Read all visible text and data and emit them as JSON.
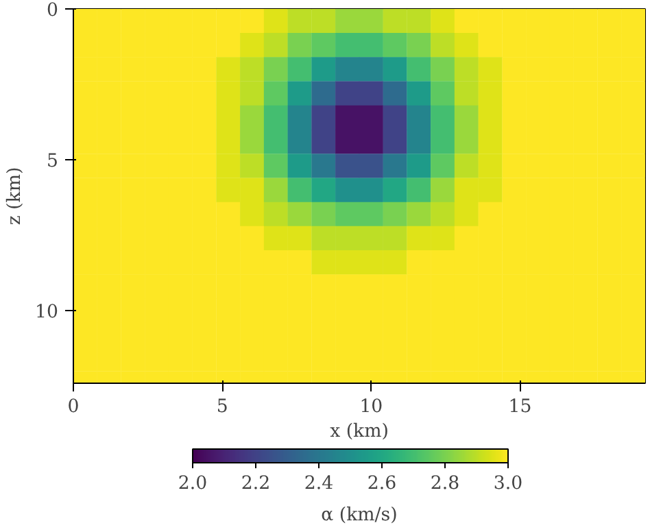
{
  "chart_data": {
    "type": "heatmap",
    "xlabel": "x (km)",
    "ylabel": "z (km)",
    "clabel": "α (km/s)",
    "xlim": [
      0,
      19.2
    ],
    "ylim": [
      12.4,
      0
    ],
    "xticks": [
      0,
      5,
      10,
      15
    ],
    "yticks": [
      0,
      5,
      10
    ],
    "clim": [
      2,
      3
    ],
    "cticks": [
      {
        "value": 2,
        "label": "2.0"
      },
      {
        "value": 2.2,
        "label": "2.2"
      },
      {
        "value": 2.4,
        "label": "2.4"
      },
      {
        "value": 2.6,
        "label": "2.6"
      },
      {
        "value": 2.8,
        "label": "2.8"
      },
      {
        "value": 3,
        "label": "3.0"
      }
    ],
    "x": [
      0.4,
      1.2,
      2.0,
      2.8,
      3.6,
      4.4,
      5.2,
      6.0,
      6.8,
      7.6,
      8.4,
      9.2,
      10.0,
      10.8,
      11.6,
      12.4,
      13.2,
      14.0,
      14.8,
      15.6,
      16.4,
      17.2,
      18.0,
      18.8
    ],
    "y": [
      0.4,
      1.2,
      2.0,
      2.8,
      3.6,
      4.4,
      5.2,
      6.0,
      6.8,
      7.6,
      8.4,
      9.2,
      10.0,
      10.8,
      11.6,
      12.4
    ],
    "cells": [
      [
        3,
        3,
        3,
        3,
        3,
        3,
        3,
        3,
        2.95,
        2.9,
        2.9,
        2.85,
        2.85,
        2.9,
        2.9,
        2.95,
        3,
        3,
        3,
        3,
        3,
        3,
        3,
        3
      ],
      [
        3,
        3,
        3,
        3,
        3,
        3,
        3,
        2.95,
        2.9,
        2.8,
        2.75,
        2.7,
        2.7,
        2.75,
        2.8,
        2.9,
        2.95,
        3,
        3,
        3,
        3,
        3,
        3,
        3
      ],
      [
        3,
        3,
        3,
        3,
        3,
        3,
        2.95,
        2.9,
        2.8,
        2.7,
        2.55,
        2.45,
        2.45,
        2.55,
        2.7,
        2.8,
        2.9,
        2.95,
        3,
        3,
        3,
        3,
        3,
        3
      ],
      [
        3,
        3,
        3,
        3,
        3,
        3,
        2.95,
        2.9,
        2.75,
        2.55,
        2.35,
        2.2,
        2.2,
        2.35,
        2.55,
        2.75,
        2.9,
        2.95,
        3,
        3,
        3,
        3,
        3,
        3
      ],
      [
        3,
        3,
        3,
        3,
        3,
        3,
        2.95,
        2.85,
        2.7,
        2.45,
        2.2,
        2.05,
        2.05,
        2.2,
        2.45,
        2.7,
        2.85,
        2.95,
        3,
        3,
        3,
        3,
        3,
        3
      ],
      [
        3,
        3,
        3,
        3,
        3,
        3,
        2.95,
        2.85,
        2.7,
        2.45,
        2.2,
        2.05,
        2.05,
        2.2,
        2.45,
        2.7,
        2.85,
        2.95,
        3,
        3,
        3,
        3,
        3,
        3
      ],
      [
        3,
        3,
        3,
        3,
        3,
        3,
        2.95,
        2.9,
        2.75,
        2.55,
        2.4,
        2.25,
        2.25,
        2.4,
        2.55,
        2.75,
        2.9,
        2.95,
        3,
        3,
        3,
        3,
        3,
        3
      ],
      [
        3,
        3,
        3,
        3,
        3,
        3,
        2.95,
        2.95,
        2.85,
        2.7,
        2.6,
        2.5,
        2.5,
        2.6,
        2.7,
        2.85,
        2.95,
        2.95,
        3,
        3,
        3,
        3,
        3,
        3
      ],
      [
        3,
        3,
        3,
        3,
        3,
        3,
        3,
        2.95,
        2.9,
        2.85,
        2.8,
        2.75,
        2.75,
        2.8,
        2.85,
        2.9,
        2.95,
        3,
        3,
        3,
        3,
        3,
        3,
        3
      ],
      [
        3,
        3,
        3,
        3,
        3,
        3,
        3,
        3,
        2.95,
        2.95,
        2.9,
        2.9,
        2.9,
        2.9,
        2.95,
        2.95,
        3,
        3,
        3,
        3,
        3,
        3,
        3,
        3
      ],
      [
        3,
        3,
        3,
        3,
        3,
        3,
        3,
        3,
        3,
        3,
        2.95,
        2.95,
        2.95,
        2.95,
        3,
        3,
        3,
        3,
        3,
        3,
        3,
        3,
        3,
        3
      ],
      [
        3,
        3,
        3,
        3,
        3,
        3,
        3,
        3,
        3,
        3,
        3,
        3,
        3,
        3,
        3,
        3,
        3,
        3,
        3,
        3,
        3,
        3,
        3,
        3
      ],
      [
        3,
        3,
        3,
        3,
        3,
        3,
        3,
        3,
        3,
        3,
        3,
        3,
        3,
        3,
        3,
        3,
        3,
        3,
        3,
        3,
        3,
        3,
        3,
        3
      ],
      [
        3,
        3,
        3,
        3,
        3,
        3,
        3,
        3,
        3,
        3,
        3,
        3,
        3,
        3,
        3,
        3,
        3,
        3,
        3,
        3,
        3,
        3,
        3,
        3
      ],
      [
        3,
        3,
        3,
        3,
        3,
        3,
        3,
        3,
        3,
        3,
        3,
        3,
        3,
        3,
        3,
        3,
        3,
        3,
        3,
        3,
        3,
        3,
        3,
        3
      ],
      [
        3,
        3,
        3,
        3,
        3,
        3,
        3,
        3,
        3,
        3,
        3,
        3,
        3,
        3,
        3,
        3,
        3,
        3,
        3,
        3,
        3,
        3,
        3,
        3
      ]
    ]
  }
}
